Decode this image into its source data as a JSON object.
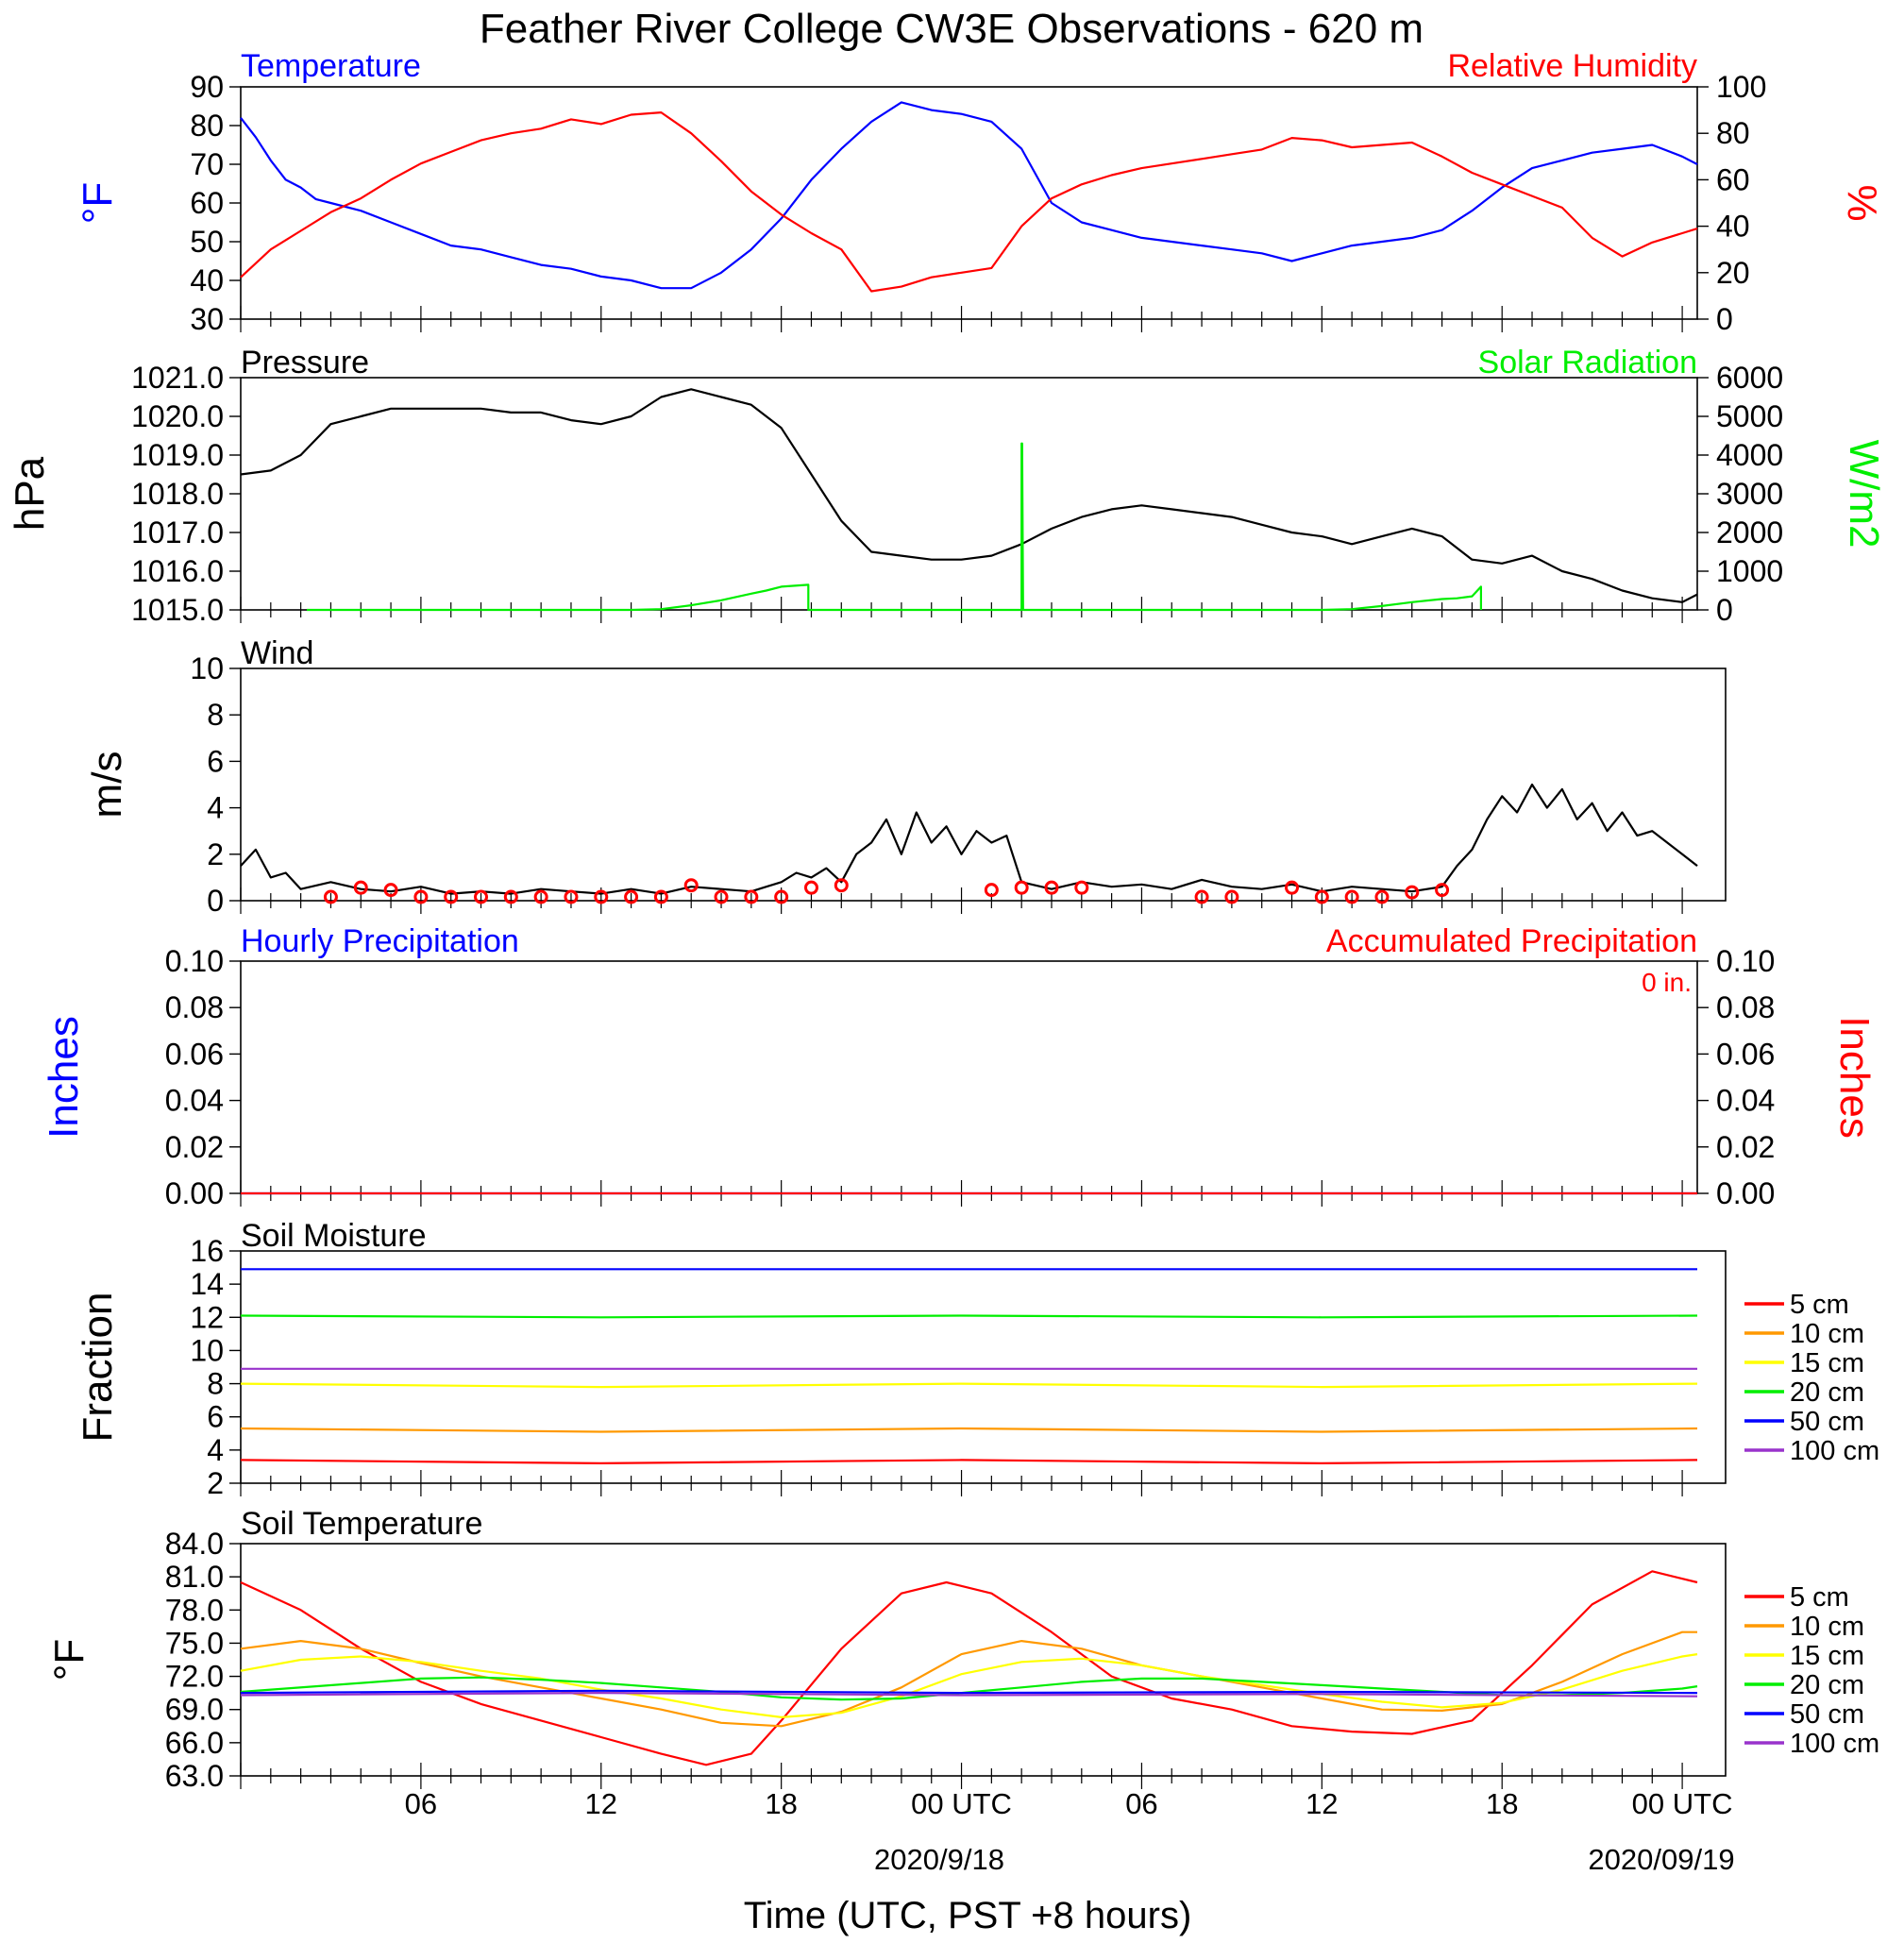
{
  "title": "Feather River College CW3E Observations - 620 m",
  "xlabel": "Time (UTC, PST +8 hours)",
  "x_ticks": [
    "06",
    "12",
    "18",
    "00 UTC",
    "06",
    "12",
    "18",
    "00 UTC"
  ],
  "x_dates": [
    "2020/9/18",
    "2020/09/19"
  ],
  "colors": {
    "temperature": "#0000ff",
    "humidity": "#ff0000",
    "pressure": "#000000",
    "solar": "#00ee00",
    "hourly_precip": "#0000ff",
    "accum_precip": "#ff0000",
    "depth_colors": [
      "#ff0000",
      "#ff9900",
      "#ffff00",
      "#00ee00",
      "#0000ff",
      "#9933cc"
    ]
  },
  "chart_data": [
    {
      "type": "line",
      "panel": "temperature-humidity",
      "title_left": "Temperature",
      "title_right": "Relative Humidity",
      "ylabel_left": "°F",
      "ylabel_right": "%",
      "ylim_left": [
        30,
        90
      ],
      "ylim_right": [
        0,
        100
      ],
      "yticks_left": [
        "30",
        "40",
        "50",
        "60",
        "70",
        "80",
        "90"
      ],
      "yticks_right": [
        "0",
        "20",
        "40",
        "60",
        "80",
        "100"
      ],
      "series": [
        {
          "name": "Temperature",
          "axis": "left",
          "x": [
            0,
            0.5,
            1,
            1.5,
            2,
            2.5,
            3,
            4,
            5,
            6,
            7,
            8,
            9,
            10,
            11,
            12,
            13,
            14,
            15,
            16,
            17,
            18,
            19,
            20,
            21,
            22,
            23,
            24,
            25,
            26,
            27,
            28,
            29,
            30,
            31,
            32,
            33,
            34,
            35,
            36,
            37,
            38,
            39,
            40,
            41,
            42,
            43,
            44,
            45,
            46,
            47,
            48,
            48.5
          ],
          "y": [
            82,
            77,
            71,
            66,
            64,
            61,
            60,
            58,
            55,
            52,
            49,
            48,
            46,
            44,
            43,
            41,
            40,
            38,
            38,
            42,
            48,
            56,
            66,
            74,
            81,
            86,
            84,
            83,
            81,
            74,
            60,
            55,
            53,
            51,
            50,
            49,
            48,
            47,
            45,
            47,
            49,
            50,
            51,
            53,
            58,
            64,
            69,
            71,
            73,
            74,
            75,
            72,
            70
          ]
        },
        {
          "name": "Relative Humidity",
          "axis": "right",
          "x": [
            0,
            1,
            2,
            3,
            4,
            5,
            6,
            7,
            8,
            9,
            10,
            11,
            12,
            13,
            14,
            15,
            16,
            17,
            18,
            19,
            20,
            21,
            22,
            23,
            24,
            25,
            26,
            27,
            28,
            29,
            30,
            31,
            32,
            33,
            34,
            35,
            36,
            37,
            38,
            39,
            40,
            41,
            42,
            43,
            44,
            45,
            46,
            47,
            48,
            48.5
          ],
          "y": [
            18,
            30,
            38,
            46,
            52,
            60,
            67,
            72,
            77,
            80,
            82,
            86,
            84,
            88,
            89,
            80,
            68,
            55,
            45,
            37,
            30,
            12,
            14,
            18,
            20,
            22,
            40,
            52,
            58,
            62,
            65,
            67,
            69,
            71,
            73,
            78,
            77,
            74,
            75,
            76,
            70,
            63,
            58,
            53,
            48,
            35,
            27,
            33,
            37,
            39
          ]
        }
      ]
    },
    {
      "type": "line",
      "panel": "pressure-solar",
      "title_left": "Pressure",
      "title_right": "Solar Radiation",
      "ylabel_left": "hPa",
      "ylabel_right": "W/m2",
      "ylim_left": [
        1015,
        1021
      ],
      "ylim_right": [
        0,
        6000
      ],
      "yticks_left": [
        "1015.0",
        "1016.0",
        "1017.0",
        "1018.0",
        "1019.0",
        "1020.0",
        "1021.0"
      ],
      "yticks_right": [
        "0",
        "1000",
        "2000",
        "3000",
        "4000",
        "5000",
        "6000"
      ],
      "series": [
        {
          "name": "Pressure",
          "axis": "left",
          "x": [
            0,
            1,
            2,
            3,
            4,
            5,
            6,
            7,
            8,
            9,
            10,
            11,
            12,
            13,
            14,
            15,
            16,
            17,
            18,
            19,
            20,
            21,
            22,
            23,
            24,
            25,
            26,
            27,
            28,
            29,
            30,
            31,
            32,
            33,
            34,
            35,
            36,
            37,
            38,
            39,
            40,
            41,
            42,
            43,
            44,
            45,
            46,
            47,
            48,
            48.5
          ],
          "y": [
            1018.5,
            1018.6,
            1019.0,
            1019.8,
            1020.0,
            1020.2,
            1020.2,
            1020.2,
            1020.2,
            1020.1,
            1020.1,
            1019.9,
            1019.8,
            1020.0,
            1020.5,
            1020.7,
            1020.5,
            1020.3,
            1019.7,
            1018.5,
            1017.3,
            1016.5,
            1016.4,
            1016.3,
            1016.3,
            1016.4,
            1016.7,
            1017.1,
            1017.4,
            1017.6,
            1017.7,
            1017.6,
            1017.5,
            1017.4,
            1017.2,
            1017.0,
            1016.9,
            1016.7,
            1016.9,
            1017.1,
            1016.9,
            1016.3,
            1016.2,
            1016.4,
            1016.0,
            1015.8,
            1015.5,
            1015.3,
            1015.2,
            1015.4
          ]
        },
        {
          "name": "Solar Radiation",
          "axis": "right",
          "x": [
            2.2,
            13,
            14,
            15,
            16,
            17,
            17.5,
            18,
            18.9,
            18.9,
            26,
            26,
            26.02,
            26.05,
            36,
            37,
            38,
            39,
            40,
            40.5,
            41,
            41.3,
            41.3
          ],
          "y": [
            0,
            0,
            20,
            120,
            250,
            420,
            500,
            600,
            650,
            0,
            0,
            4300,
            4300,
            0,
            0,
            20,
            100,
            200,
            280,
            300,
            350,
            600,
            0
          ]
        }
      ]
    },
    {
      "type": "line",
      "panel": "wind",
      "title_left": "Wind",
      "ylabel_left": "m/s",
      "ylim_left": [
        0,
        10
      ],
      "yticks_left": [
        "0",
        "2",
        "4",
        "6",
        "8",
        "10"
      ],
      "series": [
        {
          "name": "Wind",
          "axis": "left",
          "x": [
            0,
            0.5,
            1,
            1.5,
            2,
            3,
            4,
            5,
            6,
            7,
            8,
            9,
            10,
            11,
            12,
            13,
            14,
            15,
            16,
            17,
            17.5,
            18,
            18.5,
            19,
            19.5,
            20,
            20.5,
            21,
            21.5,
            22,
            22.5,
            23,
            23.5,
            24,
            24.5,
            25,
            25.5,
            26,
            27,
            28,
            29,
            30,
            31,
            32,
            33,
            34,
            35,
            36,
            37,
            38,
            39,
            40,
            40.5,
            41,
            41.5,
            42,
            42.5,
            43,
            43.5,
            44,
            44.5,
            45,
            45.5,
            46,
            46.5,
            47,
            47.5,
            48,
            48.5
          ],
          "y": [
            1.5,
            2.2,
            1.0,
            1.2,
            0.5,
            0.8,
            0.5,
            0.4,
            0.6,
            0.3,
            0.4,
            0.3,
            0.5,
            0.4,
            0.3,
            0.5,
            0.3,
            0.6,
            0.5,
            0.4,
            0.6,
            0.8,
            1.2,
            1.0,
            1.4,
            0.8,
            2.0,
            2.5,
            3.5,
            2.0,
            3.8,
            2.5,
            3.2,
            2.0,
            3.0,
            2.5,
            2.8,
            0.8,
            0.5,
            0.8,
            0.6,
            0.7,
            0.5,
            0.9,
            0.6,
            0.5,
            0.7,
            0.4,
            0.6,
            0.5,
            0.4,
            0.6,
            1.5,
            2.2,
            3.5,
            4.5,
            3.8,
            5.0,
            4.0,
            4.8,
            3.5,
            4.2,
            3.0,
            3.8,
            2.8,
            3.0,
            2.5,
            2.0,
            1.5
          ]
        },
        {
          "name": "Wind barbs (calm)",
          "axis": "left",
          "marker": "circle",
          "x": [
            3,
            4,
            5,
            6,
            7,
            8,
            9,
            10,
            11,
            12,
            13,
            14,
            15,
            16,
            17,
            18,
            19,
            20,
            25,
            26,
            27,
            28,
            32,
            33,
            35,
            36,
            37,
            38,
            39,
            40
          ],
          "y": [
            0,
            0.4,
            0.3,
            0,
            0,
            0,
            0,
            0,
            0,
            0,
            0,
            0,
            0.5,
            0,
            0,
            0,
            0.4,
            0.5,
            0.3,
            0.4,
            0.4,
            0.4,
            0,
            0,
            0.4,
            0,
            0,
            0,
            0.2,
            0.3
          ]
        }
      ]
    },
    {
      "type": "line",
      "panel": "precipitation",
      "title_left": "Hourly Precipitation",
      "title_right": "Accumulated Precipitation",
      "annotation": "0 in.",
      "ylabel_left": "Inches",
      "ylabel_right": "Inches",
      "ylim_left": [
        0,
        0.1
      ],
      "ylim_right": [
        0,
        0.1
      ],
      "yticks_left": [
        "0.00",
        "0.02",
        "0.04",
        "0.06",
        "0.08",
        "0.10"
      ],
      "yticks_right": [
        "0.00",
        "0.02",
        "0.04",
        "0.06",
        "0.08",
        "0.10"
      ],
      "series": [
        {
          "name": "Hourly Precipitation",
          "axis": "left",
          "x": [
            0,
            48.5
          ],
          "y": [
            0,
            0
          ]
        },
        {
          "name": "Accumulated Precipitation",
          "axis": "right",
          "x": [
            0,
            48.5
          ],
          "y": [
            0,
            0
          ]
        }
      ]
    },
    {
      "type": "line",
      "panel": "soil-moisture",
      "title_left": "Soil Moisture",
      "ylabel_left": "Fraction",
      "ylim_left": [
        2,
        16
      ],
      "yticks_left": [
        "2",
        "4",
        "6",
        "8",
        "10",
        "12",
        "14",
        "16"
      ],
      "legend": [
        "5 cm",
        "10 cm",
        "15 cm",
        "20 cm",
        "50 cm",
        "100 cm"
      ],
      "series": [
        {
          "name": "5 cm",
          "x": [
            0,
            12,
            24,
            36,
            48.5
          ],
          "y": [
            3.4,
            3.2,
            3.4,
            3.2,
            3.4
          ]
        },
        {
          "name": "10 cm",
          "x": [
            0,
            12,
            24,
            36,
            48.5
          ],
          "y": [
            5.3,
            5.1,
            5.3,
            5.1,
            5.3
          ]
        },
        {
          "name": "15 cm",
          "x": [
            0,
            12,
            24,
            36,
            48.5
          ],
          "y": [
            8.0,
            7.8,
            8.0,
            7.8,
            8.0
          ]
        },
        {
          "name": "20 cm",
          "x": [
            0,
            12,
            24,
            36,
            48.5
          ],
          "y": [
            12.1,
            12.0,
            12.1,
            12.0,
            12.1
          ]
        },
        {
          "name": "50 cm",
          "x": [
            0,
            48.5
          ],
          "y": [
            14.9,
            14.9
          ]
        },
        {
          "name": "100 cm",
          "x": [
            0,
            48.5
          ],
          "y": [
            8.9,
            8.9
          ]
        }
      ]
    },
    {
      "type": "line",
      "panel": "soil-temperature",
      "title_left": "Soil Temperature",
      "ylabel_left": "°F",
      "ylim_left": [
        63,
        84
      ],
      "yticks_left": [
        "63.0",
        "66.0",
        "69.0",
        "72.0",
        "75.0",
        "78.0",
        "81.0",
        "84.0"
      ],
      "legend": [
        "5 cm",
        "10 cm",
        "15 cm",
        "20 cm",
        "50 cm",
        "100 cm"
      ],
      "series": [
        {
          "name": "5 cm",
          "x": [
            0,
            2,
            4,
            6,
            8,
            10,
            12,
            14,
            15.5,
            17,
            18,
            20,
            22,
            23.5,
            25,
            27,
            29,
            31,
            33,
            35,
            37,
            39,
            41,
            43,
            45,
            47,
            48.5
          ],
          "y": [
            80.5,
            78,
            74.5,
            71.5,
            69.5,
            68,
            66.5,
            65,
            64,
            65,
            68,
            74.5,
            79.5,
            80.5,
            79.5,
            76,
            72,
            70,
            69,
            67.5,
            67,
            66.8,
            68,
            73,
            78.5,
            81.5,
            80.5
          ]
        },
        {
          "name": "10 cm",
          "x": [
            0,
            2,
            4,
            6,
            8,
            10,
            12,
            14,
            16,
            18,
            20,
            22,
            24,
            26,
            28,
            30,
            32,
            34,
            36,
            38,
            40,
            42,
            44,
            46,
            48,
            48.5
          ],
          "y": [
            74.5,
            75.2,
            74.5,
            73.2,
            72,
            71,
            70,
            69,
            67.8,
            67.5,
            68.8,
            71,
            74,
            75.2,
            74.5,
            73,
            72,
            71,
            70,
            69,
            68.9,
            69.5,
            71.5,
            74,
            76,
            76
          ]
        },
        {
          "name": "15 cm",
          "x": [
            0,
            2,
            4,
            6,
            8,
            10,
            12,
            14,
            16,
            18,
            20,
            22,
            24,
            26,
            28,
            30,
            32,
            34,
            36,
            38,
            40,
            42,
            44,
            46,
            48,
            48.5
          ],
          "y": [
            72.5,
            73.5,
            73.8,
            73.3,
            72.5,
            71.8,
            70.8,
            70,
            69,
            68.3,
            68.7,
            70.2,
            72.2,
            73.3,
            73.6,
            73,
            72,
            71.2,
            70.4,
            69.7,
            69.2,
            69.6,
            70.8,
            72.5,
            73.8,
            74
          ]
        },
        {
          "name": "20 cm",
          "x": [
            0,
            4,
            6,
            8,
            10,
            12,
            14,
            16,
            18,
            20,
            22,
            24,
            26,
            28,
            30,
            32,
            34,
            36,
            38,
            40,
            42,
            44,
            46,
            48,
            48.5
          ],
          "y": [
            70.6,
            71.4,
            71.8,
            71.9,
            71.7,
            71.4,
            71.0,
            70.6,
            70.1,
            69.9,
            70.0,
            70.5,
            71.0,
            71.5,
            71.8,
            71.8,
            71.5,
            71.2,
            70.9,
            70.6,
            70.3,
            70.3,
            70.5,
            70.9,
            71.1
          ]
        },
        {
          "name": "50 cm",
          "x": [
            0,
            12,
            24,
            36,
            48.5
          ],
          "y": [
            70.5,
            70.7,
            70.5,
            70.6,
            70.5
          ]
        },
        {
          "name": "100 cm",
          "x": [
            0,
            12,
            24,
            36,
            48.5
          ],
          "y": [
            70.3,
            70.5,
            70.3,
            70.4,
            70.2
          ]
        }
      ]
    }
  ]
}
